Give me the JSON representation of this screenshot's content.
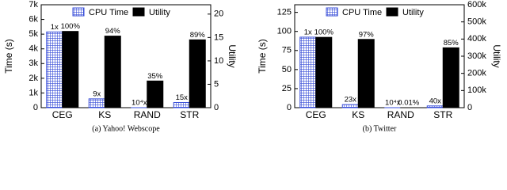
{
  "chart_data": [
    {
      "type": "bar",
      "title": "(a) Yahoo! Webscope",
      "ylabel": "Time (s)",
      "y2label": "Utility",
      "categories": [
        "CEG",
        "KS",
        "RAND",
        "STR"
      ],
      "series": [
        {
          "name": "CPU Time",
          "color": "#3a4fd8",
          "values": [
            5150,
            600,
            0.5,
            350
          ],
          "value_labels": [
            "1x",
            "9x",
            "10⁴x",
            "15x"
          ]
        },
        {
          "name": "Utility",
          "color": "#000000",
          "axis": "y2",
          "values": [
            16.3,
            15.3,
            5.7,
            14.5
          ],
          "value_labels": [
            "100%",
            "94%",
            "35%",
            "89%"
          ]
        }
      ],
      "ylim": [
        0,
        7000
      ],
      "yticks": [
        0,
        {
          "value": 1000,
          "label": "1k"
        },
        {
          "value": 2000,
          "label": "2k"
        },
        {
          "value": 3000,
          "label": "3k"
        },
        {
          "value": 4000,
          "label": "4k"
        },
        {
          "value": 5000,
          "label": "5k"
        },
        {
          "value": 6000,
          "label": "6k"
        },
        {
          "value": 7000,
          "label": "7k"
        }
      ],
      "y2lim": [
        0,
        22
      ],
      "y2ticks": [
        0,
        5,
        10,
        15,
        20
      ],
      "legend": "top"
    },
    {
      "type": "bar",
      "title": "(b) Twitter",
      "ylabel": "Time (s)",
      "y2label": "Utility",
      "categories": [
        "CEG",
        "KS",
        "RAND",
        "STR"
      ],
      "series": [
        {
          "name": "CPU Time",
          "color": "#3a4fd8",
          "values": [
            92.5,
            4,
            0.009,
            2.3
          ],
          "value_labels": [
            "1x",
            "23x",
            "10⁴x",
            "40x"
          ]
        },
        {
          "name": "Utility",
          "color": "#000000",
          "axis": "y2",
          "values": [
            410000,
            398000,
            41,
            349000
          ],
          "value_labels": [
            "100%",
            "97%",
            "0.01%",
            "85%"
          ]
        }
      ],
      "ylim": [
        0,
        135
      ],
      "yticks": [
        0,
        25,
        50,
        75,
        100,
        125
      ],
      "y2lim": [
        0,
        600000
      ],
      "y2ticks": [
        0,
        {
          "value": 100000,
          "label": "100k"
        },
        {
          "value": 200000,
          "label": "200k"
        },
        {
          "value": 300000,
          "label": "300k"
        },
        {
          "value": 400000,
          "label": "400k"
        },
        {
          "value": 500000,
          "label": "500k"
        },
        {
          "value": 600000,
          "label": "600k"
        }
      ],
      "legend": "top"
    }
  ]
}
